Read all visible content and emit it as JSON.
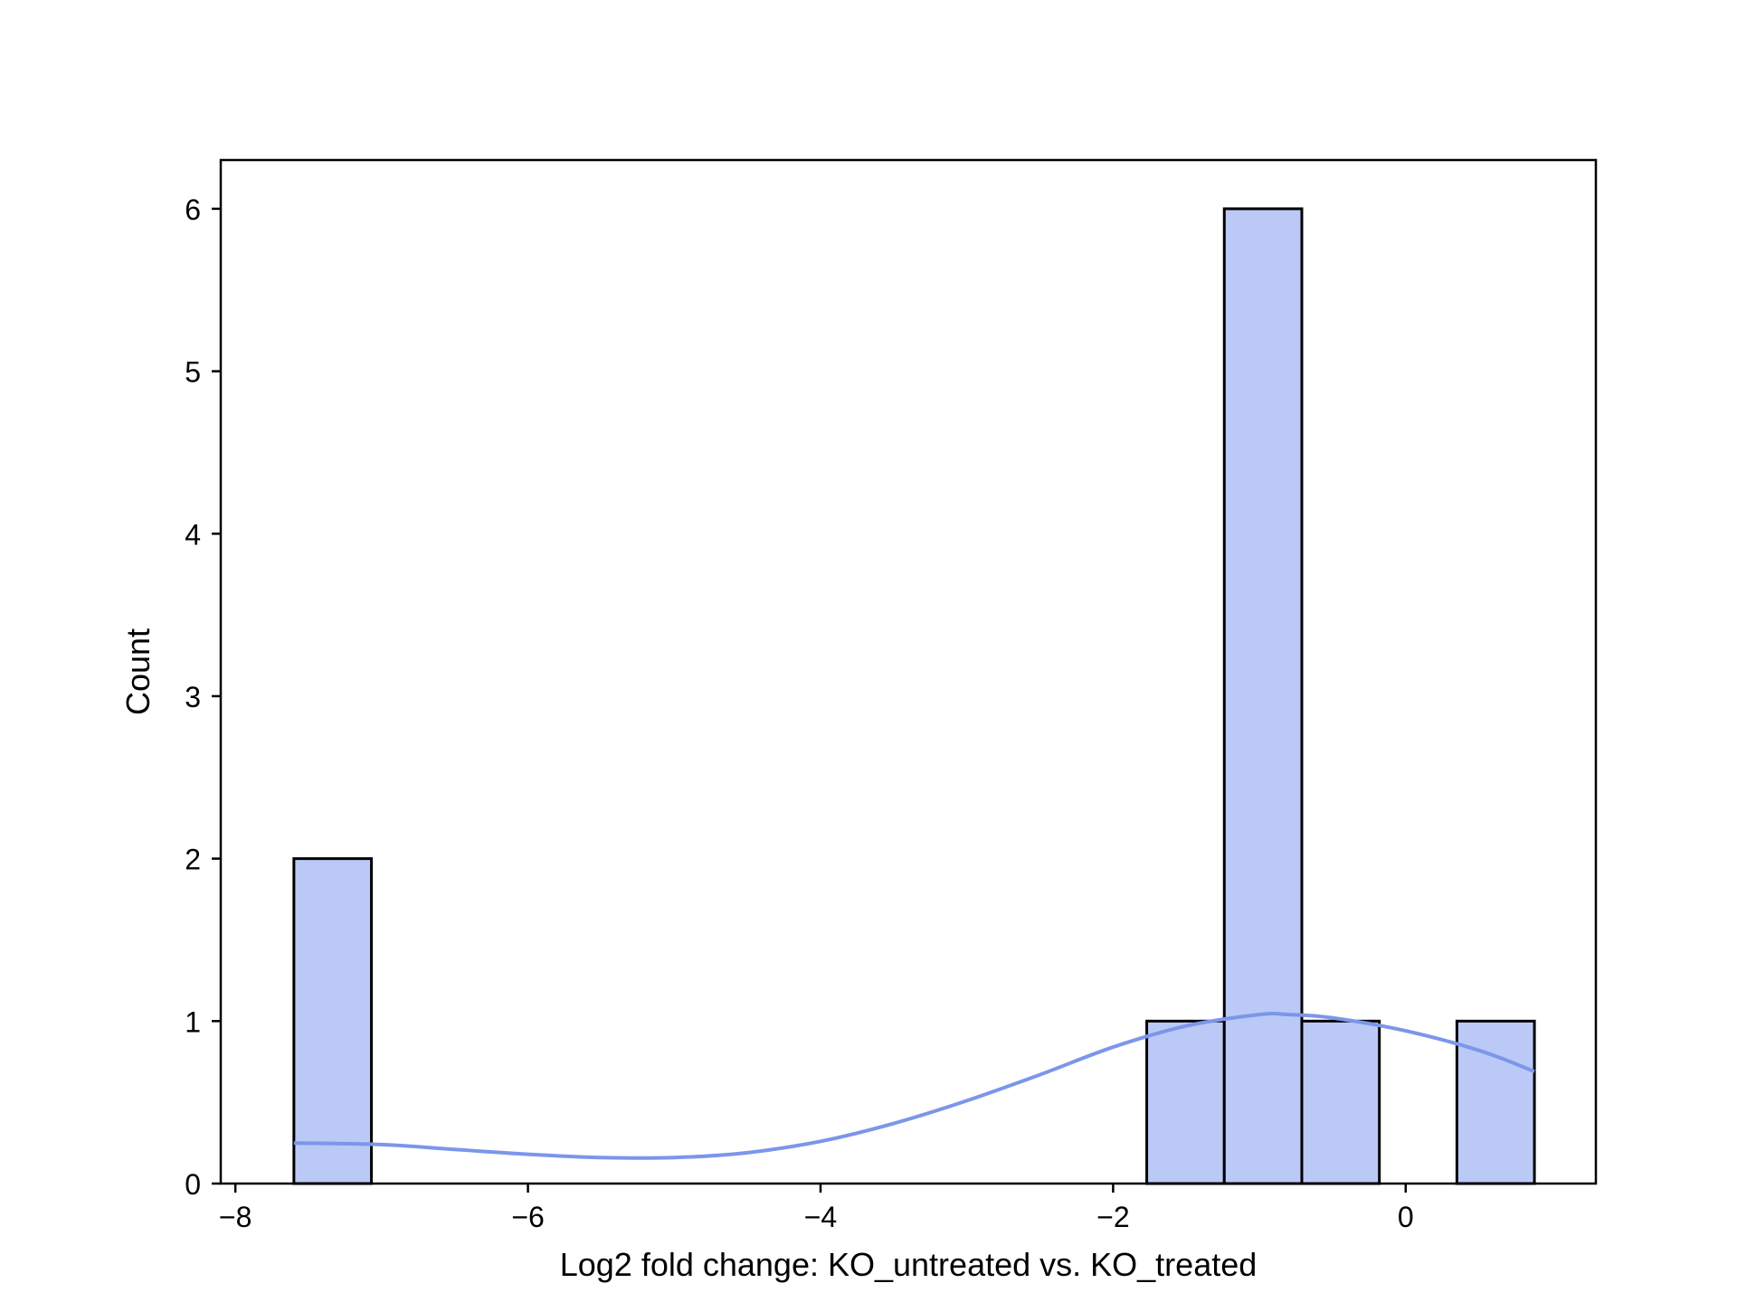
{
  "chart_data": {
    "type": "bar",
    "subtype": "histogram",
    "xlabel": "Log2 fold change: KO_untreated vs. KO_treated",
    "ylabel": "Count",
    "xlim": [
      -8.1,
      1.3
    ],
    "ylim": [
      0,
      6.3
    ],
    "xticks": [
      -8,
      -6,
      -4,
      -2,
      0
    ],
    "xtick_labels": [
      "−8",
      "−6",
      "−4",
      "−2",
      "0"
    ],
    "yticks": [
      0,
      1,
      2,
      3,
      4,
      5,
      6
    ],
    "ytick_labels": [
      "0",
      "1",
      "2",
      "3",
      "4",
      "5",
      "6"
    ],
    "grid": false,
    "bins": [
      {
        "x0": -7.6,
        "x1": -7.07,
        "count": 2
      },
      {
        "x0": -1.77,
        "x1": -1.24,
        "count": 1
      },
      {
        "x0": -1.24,
        "x1": -0.71,
        "count": 6
      },
      {
        "x0": -0.71,
        "x1": -0.18,
        "count": 1
      },
      {
        "x0": 0.35,
        "x1": 0.88,
        "count": 1
      }
    ],
    "kde": {
      "x": [
        -7.6,
        -7.0,
        -6.5,
        -6.0,
        -5.5,
        -5.0,
        -4.5,
        -4.0,
        -3.5,
        -3.0,
        -2.5,
        -2.0,
        -1.5,
        -1.0,
        -0.8,
        -0.5,
        0.0,
        0.5,
        0.88
      ],
      "y": [
        0.25,
        0.24,
        0.21,
        0.18,
        0.16,
        0.16,
        0.19,
        0.26,
        0.37,
        0.51,
        0.67,
        0.84,
        0.97,
        1.04,
        1.04,
        1.02,
        0.94,
        0.82,
        0.69
      ]
    },
    "colors": {
      "bar_fill": "#bbc9f7",
      "bar_edge": "#000000",
      "kde_line": "#7b96ea"
    }
  }
}
